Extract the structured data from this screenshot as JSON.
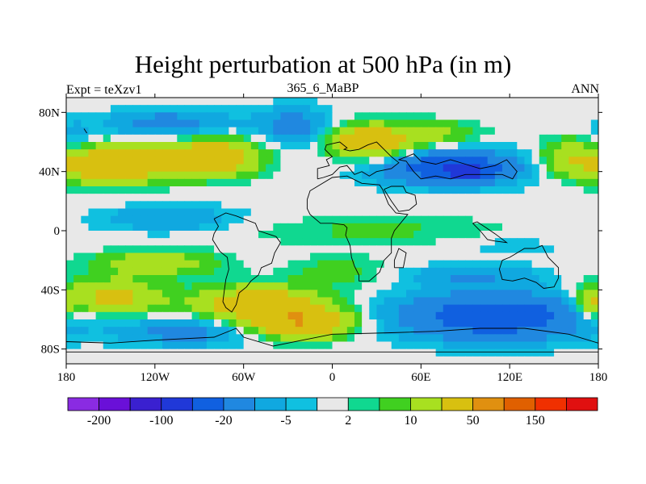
{
  "chart_data": {
    "type": "heatmap",
    "title": "Height perturbation at 500 hPa (in m)",
    "left_label": "Expt = teXzv1",
    "center_label": "365_6_MaBP",
    "right_label": "ANN",
    "x_range": [
      -180,
      180
    ],
    "y_range": [
      -90,
      90
    ],
    "x_ticks": [
      {
        "value": -180,
        "label": "180"
      },
      {
        "value": -120,
        "label": "120W"
      },
      {
        "value": -60,
        "label": "60W"
      },
      {
        "value": 0,
        "label": "0"
      },
      {
        "value": 60,
        "label": "60E"
      },
      {
        "value": 120,
        "label": "120E"
      },
      {
        "value": 180,
        "label": "180"
      }
    ],
    "y_ticks": [
      {
        "value": 80,
        "label": "80N"
      },
      {
        "value": 40,
        "label": "40N"
      },
      {
        "value": 0,
        "label": "0"
      },
      {
        "value": -40,
        "label": "40S"
      },
      {
        "value": -80,
        "label": "80S"
      }
    ],
    "levels": [
      -200,
      -150,
      -100,
      -50,
      -20,
      -10,
      -5,
      -2,
      2,
      5,
      10,
      20,
      50,
      100,
      150,
      200
    ],
    "colors": [
      "#8a2be2",
      "#6a10d8",
      "#3a20d0",
      "#2038d8",
      "#1060e0",
      "#2088e0",
      "#10a8e0",
      "#10c0e0",
      "#e8e8e8",
      "#10d890",
      "#40d020",
      "#a8e020",
      "#d8c010",
      "#e09010",
      "#e06000",
      "#f03000",
      "#e01010"
    ],
    "colorbar_labels": [
      {
        "after_level": -200,
        "label": "-200"
      },
      {
        "after_level": -100,
        "label": "-100"
      },
      {
        "after_level": -20,
        "label": "-20"
      },
      {
        "after_level": -5,
        "label": "-5"
      },
      {
        "after_level": 2,
        "label": "2"
      },
      {
        "after_level": 10,
        "label": "10"
      },
      {
        "after_level": 50,
        "label": "50"
      },
      {
        "after_level": 150,
        "label": "150"
      }
    ],
    "blobs": [
      {
        "lon": -150,
        "lat": 45,
        "rlon": 40,
        "rlat": 12,
        "amp": 40
      },
      {
        "lon": -80,
        "lat": 50,
        "rlon": 30,
        "rlat": 12,
        "amp": 35
      },
      {
        "lon": -110,
        "lat": 72,
        "rlon": 45,
        "rlat": 10,
        "amp": -14
      },
      {
        "lon": -25,
        "lat": 70,
        "rlon": 25,
        "rlat": 14,
        "amp": -14
      },
      {
        "lon": 25,
        "lat": 60,
        "rlon": 28,
        "rlat": 11,
        "amp": 35
      },
      {
        "lon": 70,
        "lat": 65,
        "rlon": 30,
        "rlat": 9,
        "amp": 12
      },
      {
        "lon": 80,
        "lat": 43,
        "rlon": 48,
        "rlat": 12,
        "amp": -30
      },
      {
        "lon": 90,
        "lat": 40,
        "rlon": 14,
        "rlat": 5,
        "amp": -60
      },
      {
        "lon": 160,
        "lat": 50,
        "rlon": 20,
        "rlat": 12,
        "amp": 15
      },
      {
        "lon": -175,
        "lat": 60,
        "rlon": 12,
        "rlat": 14,
        "amp": -8
      },
      {
        "lon": -110,
        "lat": 8,
        "rlon": 50,
        "rlat": 9,
        "amp": -10
      },
      {
        "lon": 30,
        "lat": 0,
        "rlon": 90,
        "rlat": 10,
        "amp": 6
      },
      {
        "lon": 120,
        "lat": -10,
        "rlon": 40,
        "rlat": 8,
        "amp": -4
      },
      {
        "lon": -150,
        "lat": -45,
        "rlon": 35,
        "rlat": 12,
        "amp": 25
      },
      {
        "lon": -120,
        "lat": -22,
        "rlon": 40,
        "rlat": 8,
        "amp": 18
      },
      {
        "lon": -50,
        "lat": -50,
        "rlon": 40,
        "rlat": 12,
        "amp": 35
      },
      {
        "lon": -20,
        "lat": -62,
        "rlon": 30,
        "rlat": 10,
        "amp": 45
      },
      {
        "lon": -100,
        "lat": -68,
        "rlon": 45,
        "rlat": 10,
        "amp": -14
      },
      {
        "lon": 5,
        "lat": -28,
        "rlon": 30,
        "rlat": 10,
        "amp": 8
      },
      {
        "lon": 110,
        "lat": -58,
        "rlon": 65,
        "rlat": 16,
        "amp": -30
      },
      {
        "lon": 95,
        "lat": -30,
        "rlon": 45,
        "rlat": 7,
        "amp": -10
      },
      {
        "lon": 175,
        "lat": -50,
        "rlon": 10,
        "rlat": 10,
        "amp": 20
      }
    ],
    "coastlines": [
      [
        [
          -10,
          35
        ],
        [
          -10,
          42
        ],
        [
          -2,
          44
        ],
        [
          -4,
          48
        ],
        [
          0,
          50
        ],
        [
          -5,
          55
        ],
        [
          -4,
          58
        ],
        [
          5,
          60
        ],
        [
          10,
          56
        ],
        [
          8,
          55
        ],
        [
          12,
          54
        ],
        [
          18,
          55
        ],
        [
          24,
          58
        ],
        [
          30,
          60
        ],
        [
          35,
          55
        ],
        [
          40,
          50
        ],
        [
          45,
          46
        ],
        [
          40,
          42
        ],
        [
          30,
          40
        ],
        [
          25,
          37
        ],
        [
          20,
          40
        ],
        [
          15,
          38
        ],
        [
          10,
          44
        ],
        [
          5,
          43
        ],
        [
          0,
          38
        ],
        [
          -6,
          36
        ],
        [
          -10,
          35
        ]
      ],
      [
        [
          60,
          35
        ],
        [
          55,
          40
        ],
        [
          50,
          47
        ],
        [
          45,
          48
        ],
        [
          55,
          52
        ],
        [
          60,
          47
        ],
        [
          70,
          45
        ],
        [
          80,
          48
        ],
        [
          90,
          45
        ],
        [
          100,
          42
        ],
        [
          110,
          44
        ],
        [
          118,
          48
        ],
        [
          125,
          40
        ],
        [
          122,
          35
        ],
        [
          115,
          38
        ],
        [
          100,
          38
        ],
        [
          90,
          38
        ],
        [
          80,
          35
        ],
        [
          70,
          37
        ],
        [
          60,
          35
        ]
      ],
      [
        [
          -17,
          21
        ],
        [
          -17,
          15
        ],
        [
          -15,
          11
        ],
        [
          -8,
          5
        ],
        [
          0,
          5
        ],
        [
          8,
          4
        ],
        [
          10,
          2
        ],
        [
          9,
          -3
        ],
        [
          12,
          -10
        ],
        [
          13,
          -18
        ],
        [
          15,
          -24
        ],
        [
          18,
          -30
        ],
        [
          18,
          -34
        ],
        [
          25,
          -34
        ],
        [
          32,
          -28
        ],
        [
          35,
          -20
        ],
        [
          40,
          -15
        ],
        [
          40,
          -5
        ],
        [
          42,
          0
        ],
        [
          51,
          11
        ],
        [
          43,
          12
        ],
        [
          38,
          18
        ],
        [
          34,
          28
        ],
        [
          32,
          31
        ],
        [
          20,
          32
        ],
        [
          10,
          37
        ],
        [
          0,
          36
        ],
        [
          -10,
          30
        ],
        [
          -15,
          27
        ],
        [
          -17,
          21
        ]
      ],
      [
        [
          35,
          28
        ],
        [
          40,
          20
        ],
        [
          45,
          13
        ],
        [
          52,
          14
        ],
        [
          57,
          18
        ],
        [
          56,
          24
        ],
        [
          50,
          26
        ],
        [
          48,
          30
        ],
        [
          40,
          30
        ],
        [
          35,
          28
        ]
      ],
      [
        [
          -80,
          8
        ],
        [
          -77,
          3
        ],
        [
          -80,
          -2
        ],
        [
          -81,
          -6
        ],
        [
          -76,
          -14
        ],
        [
          -71,
          -18
        ],
        [
          -70,
          -26
        ],
        [
          -72,
          -33
        ],
        [
          -73,
          -40
        ],
        [
          -74,
          -48
        ],
        [
          -72,
          -52
        ],
        [
          -68,
          -55
        ],
        [
          -65,
          -50
        ],
        [
          -63,
          -42
        ],
        [
          -58,
          -38
        ],
        [
          -55,
          -34
        ],
        [
          -50,
          -30
        ],
        [
          -48,
          -25
        ],
        [
          -41,
          -22
        ],
        [
          -39,
          -15
        ],
        [
          -35,
          -8
        ],
        [
          -38,
          -4
        ],
        [
          -44,
          -2
        ],
        [
          -50,
          0
        ],
        [
          -52,
          5
        ],
        [
          -60,
          8
        ],
        [
          -65,
          10
        ],
        [
          -72,
          12
        ],
        [
          -78,
          9
        ],
        [
          -80,
          8
        ]
      ],
      [
        [
          -180,
          -75
        ],
        [
          -150,
          -76
        ],
        [
          -120,
          -74
        ],
        [
          -80,
          -72
        ],
        [
          -65,
          -66
        ],
        [
          -60,
          -72
        ],
        [
          -40,
          -78
        ],
        [
          0,
          -70
        ],
        [
          40,
          -69
        ],
        [
          70,
          -68
        ],
        [
          100,
          -66
        ],
        [
          130,
          -66
        ],
        [
          160,
          -70
        ],
        [
          180,
          -76
        ],
        [
          180,
          -90
        ],
        [
          -180,
          -90
        ],
        [
          -180,
          -75
        ]
      ],
      [
        [
          -180,
          -82
        ],
        [
          180,
          -82
        ]
      ],
      [
        [
          115,
          -20
        ],
        [
          120,
          -18
        ],
        [
          130,
          -12
        ],
        [
          137,
          -12
        ],
        [
          142,
          -10
        ],
        [
          146,
          -18
        ],
        [
          153,
          -25
        ],
        [
          153,
          -32
        ],
        [
          150,
          -38
        ],
        [
          143,
          -39
        ],
        [
          138,
          -35
        ],
        [
          130,
          -32
        ],
        [
          122,
          -34
        ],
        [
          115,
          -33
        ],
        [
          113,
          -26
        ],
        [
          115,
          -20
        ]
      ],
      [
        [
          95,
          5
        ],
        [
          100,
          0
        ],
        [
          105,
          -6
        ],
        [
          110,
          -7
        ],
        [
          118,
          -8
        ],
        [
          110,
          -2
        ],
        [
          104,
          2
        ],
        [
          98,
          6
        ],
        [
          95,
          5
        ]
      ],
      [
        [
          42,
          -25
        ],
        [
          48,
          -25
        ],
        [
          50,
          -15
        ],
        [
          45,
          -12
        ],
        [
          42,
          -20
        ],
        [
          42,
          -25
        ]
      ],
      [
        [
          -166,
          66
        ],
        [
          -168,
          69
        ]
      ]
    ]
  }
}
